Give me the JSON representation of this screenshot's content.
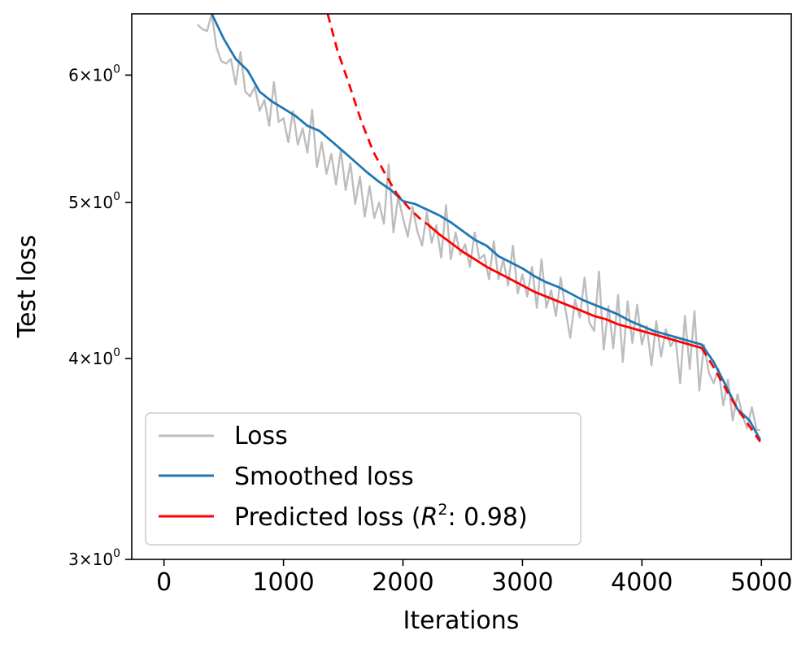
{
  "chart_data": {
    "type": "line",
    "title": "",
    "xlabel": "Iterations",
    "ylabel": "Test loss",
    "xlim": [
      -270,
      5250
    ],
    "ylim": [
      3.0,
      6.55
    ],
    "yscale": "log",
    "grid": false,
    "legend_position": "lower-left",
    "x_ticks": [
      0,
      1000,
      2000,
      3000,
      4000,
      5000
    ],
    "x_tick_labels": [
      "0",
      "1000",
      "2000",
      "3000",
      "4000",
      "5000"
    ],
    "y_ticks": [
      {
        "value": 3,
        "coef": "3",
        "exp": "0"
      },
      {
        "value": 4,
        "coef": "4",
        "exp": "0"
      },
      {
        "value": 5,
        "coef": "5",
        "exp": "0"
      },
      {
        "value": 6,
        "coef": "6",
        "exp": "0"
      }
    ],
    "series": [
      {
        "name": "Loss",
        "color": "#bdbdbd",
        "style": "solid",
        "x": [
          280,
          320,
          360,
          400,
          440,
          480,
          520,
          560,
          600,
          640,
          680,
          720,
          760,
          800,
          840,
          880,
          920,
          960,
          1000,
          1040,
          1080,
          1120,
          1160,
          1200,
          1240,
          1280,
          1320,
          1360,
          1400,
          1440,
          1480,
          1520,
          1560,
          1600,
          1640,
          1680,
          1720,
          1760,
          1800,
          1840,
          1880,
          1920,
          1960,
          2000,
          2040,
          2080,
          2120,
          2160,
          2200,
          2240,
          2280,
          2320,
          2360,
          2400,
          2440,
          2480,
          2520,
          2560,
          2600,
          2640,
          2680,
          2720,
          2760,
          2800,
          2840,
          2880,
          2920,
          2960,
          3000,
          3040,
          3080,
          3120,
          3160,
          3200,
          3240,
          3280,
          3320,
          3360,
          3400,
          3440,
          3480,
          3520,
          3560,
          3600,
          3640,
          3680,
          3720,
          3760,
          3800,
          3840,
          3880,
          3920,
          3960,
          4000,
          4040,
          4080,
          4120,
          4160,
          4200,
          4240,
          4280,
          4320,
          4360,
          4400,
          4440,
          4480,
          4520,
          4560,
          4600,
          4640,
          4680,
          4720,
          4760,
          4800,
          4840,
          4880,
          4920,
          4960,
          4990
        ],
        "values": [
          6.45,
          6.41,
          6.39,
          6.55,
          6.24,
          6.12,
          6.1,
          6.14,
          5.92,
          6.2,
          5.86,
          5.82,
          5.9,
          5.7,
          5.79,
          5.58,
          5.94,
          5.61,
          5.64,
          5.45,
          5.7,
          5.43,
          5.56,
          5.37,
          5.71,
          5.26,
          5.45,
          5.21,
          5.36,
          5.13,
          5.39,
          5.09,
          5.29,
          4.99,
          5.19,
          4.9,
          5.12,
          4.89,
          5.0,
          4.85,
          5.28,
          4.79,
          5.04,
          4.89,
          4.76,
          4.97,
          4.8,
          4.7,
          4.93,
          4.72,
          4.84,
          4.62,
          4.98,
          4.61,
          4.79,
          4.64,
          4.71,
          4.56,
          4.79,
          4.61,
          4.64,
          4.48,
          4.73,
          4.48,
          4.61,
          4.44,
          4.7,
          4.39,
          4.51,
          4.37,
          4.56,
          4.3,
          4.61,
          4.3,
          4.41,
          4.25,
          4.49,
          4.29,
          4.12,
          4.35,
          4.24,
          4.49,
          4.21,
          4.16,
          4.53,
          4.05,
          4.31,
          4.06,
          4.38,
          3.98,
          4.34,
          4.09,
          4.32,
          4.08,
          4.19,
          3.96,
          4.22,
          4.01,
          4.17,
          4.07,
          4.12,
          3.86,
          4.25,
          3.94,
          4.28,
          3.82,
          4.08,
          3.92,
          3.86,
          3.94,
          3.74,
          3.88,
          3.66,
          3.8,
          3.69,
          3.62,
          3.73,
          3.61,
          3.61
        ]
      },
      {
        "name": "Smoothed loss",
        "color": "#1f77b4",
        "style": "solid",
        "x": [
          400,
          500,
          600,
          700,
          800,
          900,
          1000,
          1100,
          1200,
          1300,
          1400,
          1500,
          1600,
          1700,
          1800,
          1900,
          2000,
          2100,
          2200,
          2300,
          2400,
          2500,
          2600,
          2700,
          2800,
          2900,
          3000,
          3100,
          3200,
          3300,
          3400,
          3500,
          3600,
          3700,
          3800,
          3900,
          4000,
          4100,
          4200,
          4300,
          4400,
          4500,
          4600,
          4700,
          4800,
          4900,
          4990
        ],
        "values": [
          6.55,
          6.32,
          6.14,
          6.04,
          5.86,
          5.78,
          5.72,
          5.66,
          5.58,
          5.54,
          5.46,
          5.38,
          5.3,
          5.22,
          5.15,
          5.09,
          5.01,
          4.99,
          4.95,
          4.91,
          4.86,
          4.8,
          4.74,
          4.7,
          4.63,
          4.59,
          4.55,
          4.5,
          4.46,
          4.43,
          4.39,
          4.35,
          4.32,
          4.29,
          4.26,
          4.22,
          4.19,
          4.16,
          4.14,
          4.12,
          4.1,
          4.08,
          3.98,
          3.85,
          3.72,
          3.66,
          3.56
        ]
      },
      {
        "name": "Predicted loss (R2: 0.98)",
        "legend_label_prefix": "Predicted loss (",
        "legend_label_r": "R",
        "legend_label_exp": "2",
        "legend_label_suffix": ": 0.98)",
        "color": "#ff0000",
        "style": "solid",
        "fit_range": [
          2200,
          4500
        ],
        "x": [
          1370,
          1450,
          1550,
          1650,
          1750,
          1850,
          1950,
          2050,
          2150,
          2200,
          2300,
          2400,
          2500,
          2600,
          2700,
          2800,
          2900,
          3000,
          3100,
          3200,
          3300,
          3400,
          3500,
          3600,
          3700,
          3800,
          3900,
          4000,
          4100,
          4200,
          4300,
          4400,
          4500,
          4600,
          4700,
          4800,
          4900,
          4990
        ],
        "values": [
          6.55,
          6.22,
          5.92,
          5.62,
          5.38,
          5.21,
          5.06,
          4.96,
          4.88,
          4.85,
          4.78,
          4.72,
          4.66,
          4.61,
          4.56,
          4.52,
          4.48,
          4.44,
          4.4,
          4.37,
          4.34,
          4.31,
          4.28,
          4.25,
          4.23,
          4.2,
          4.18,
          4.16,
          4.14,
          4.12,
          4.1,
          4.08,
          4.06,
          3.95,
          3.83,
          3.72,
          3.63,
          3.55
        ]
      }
    ]
  }
}
